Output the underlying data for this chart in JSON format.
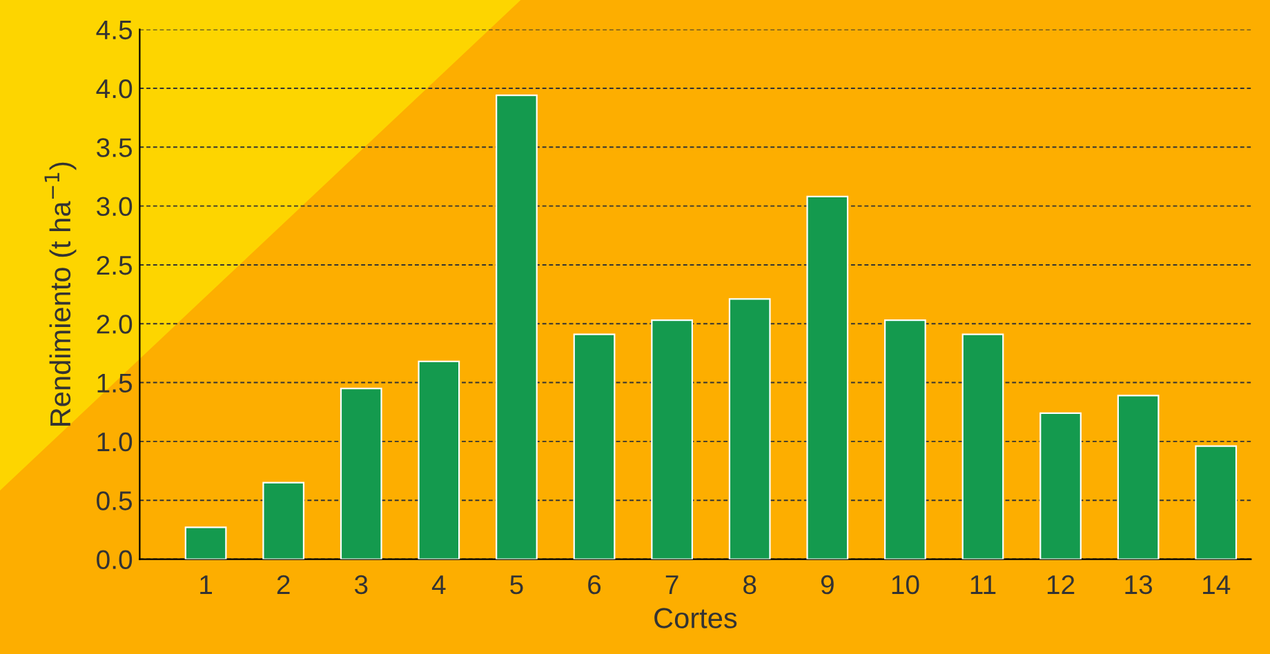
{
  "chart_data": {
    "type": "bar",
    "xlabel": "Cortes",
    "ylabel": "Rendimiento (t ha$^{−1}$)",
    "categories": [
      "1",
      "2",
      "3",
      "4",
      "5",
      "6",
      "7",
      "8",
      "9",
      "10",
      "11",
      "12",
      "13",
      "14"
    ],
    "values": [
      0.27,
      0.65,
      1.45,
      1.68,
      3.94,
      1.91,
      2.03,
      2.21,
      3.08,
      2.03,
      1.91,
      1.24,
      1.39,
      0.96
    ],
    "color": "#149a4e",
    "ylim": [
      0,
      4.5
    ],
    "yticks": [
      {
        "value": 0,
        "label": "0.0"
      },
      0.5,
      {
        "value": 1,
        "label": "1.0"
      },
      1.5,
      {
        "value": 2,
        "label": "2.0"
      },
      2.5,
      {
        "value": 3,
        "label": "3.0"
      },
      3.5,
      {
        "value": 4,
        "label": "4.0"
      },
      4.5
    ],
    "grid": "y",
    "line_style": "dashed"
  }
}
